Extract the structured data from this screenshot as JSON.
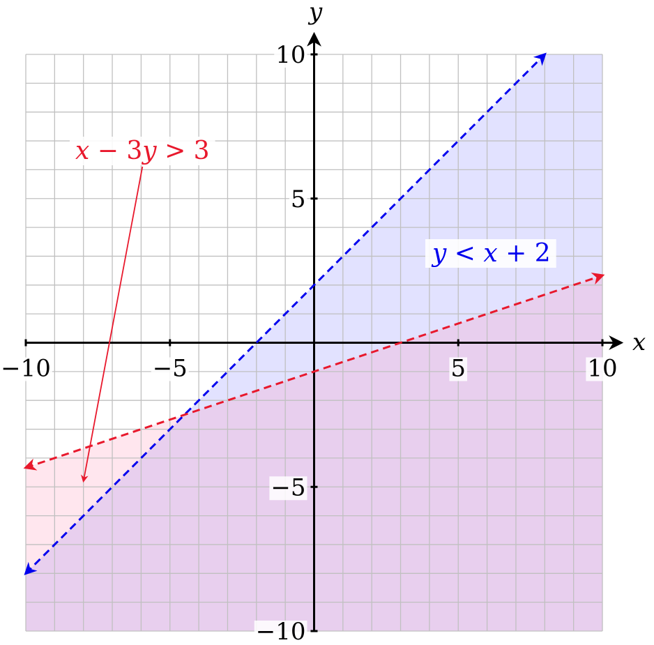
{
  "chart_data": {
    "type": "line",
    "title": "",
    "xlabel": "x",
    "ylabel": "y",
    "xlim": [
      -10,
      10
    ],
    "ylim": [
      -10,
      10
    ],
    "grid": true,
    "x_ticks": [
      -10,
      -5,
      5,
      10
    ],
    "y_ticks": [
      -10,
      -5,
      5,
      10
    ],
    "x_tick_labels": [
      "−10",
      "−5",
      "5",
      "10"
    ],
    "y_tick_labels": [
      "−10",
      "−5",
      "5",
      "10"
    ],
    "colors": {
      "grid": "#c0c0c0",
      "axes": "#000000",
      "blue": "#0000ee",
      "red": "#e8182c",
      "blue_region": "#7070ff",
      "red_region": "#ff8fb0"
    },
    "series": [
      {
        "label": "y < x + 2",
        "label_parts": [
          "y",
          " < ",
          "x",
          " + 2"
        ],
        "color": "#0000ee",
        "dash": "dashed",
        "arrows": "both",
        "x": [
          -10,
          8
        ],
        "y": [
          -8,
          10
        ],
        "shade": "below"
      },
      {
        "label": "x − 3y > 3",
        "label_parts": [
          "x",
          " − 3",
          "y",
          " > 3"
        ],
        "color": "#e8182c",
        "dash": "dashed",
        "arrows": "both",
        "x": [
          -10,
          10
        ],
        "y": [
          -4.333,
          2.333
        ],
        "shade": "below",
        "label_pointer_to": [
          -8,
          -4.8
        ]
      }
    ]
  }
}
